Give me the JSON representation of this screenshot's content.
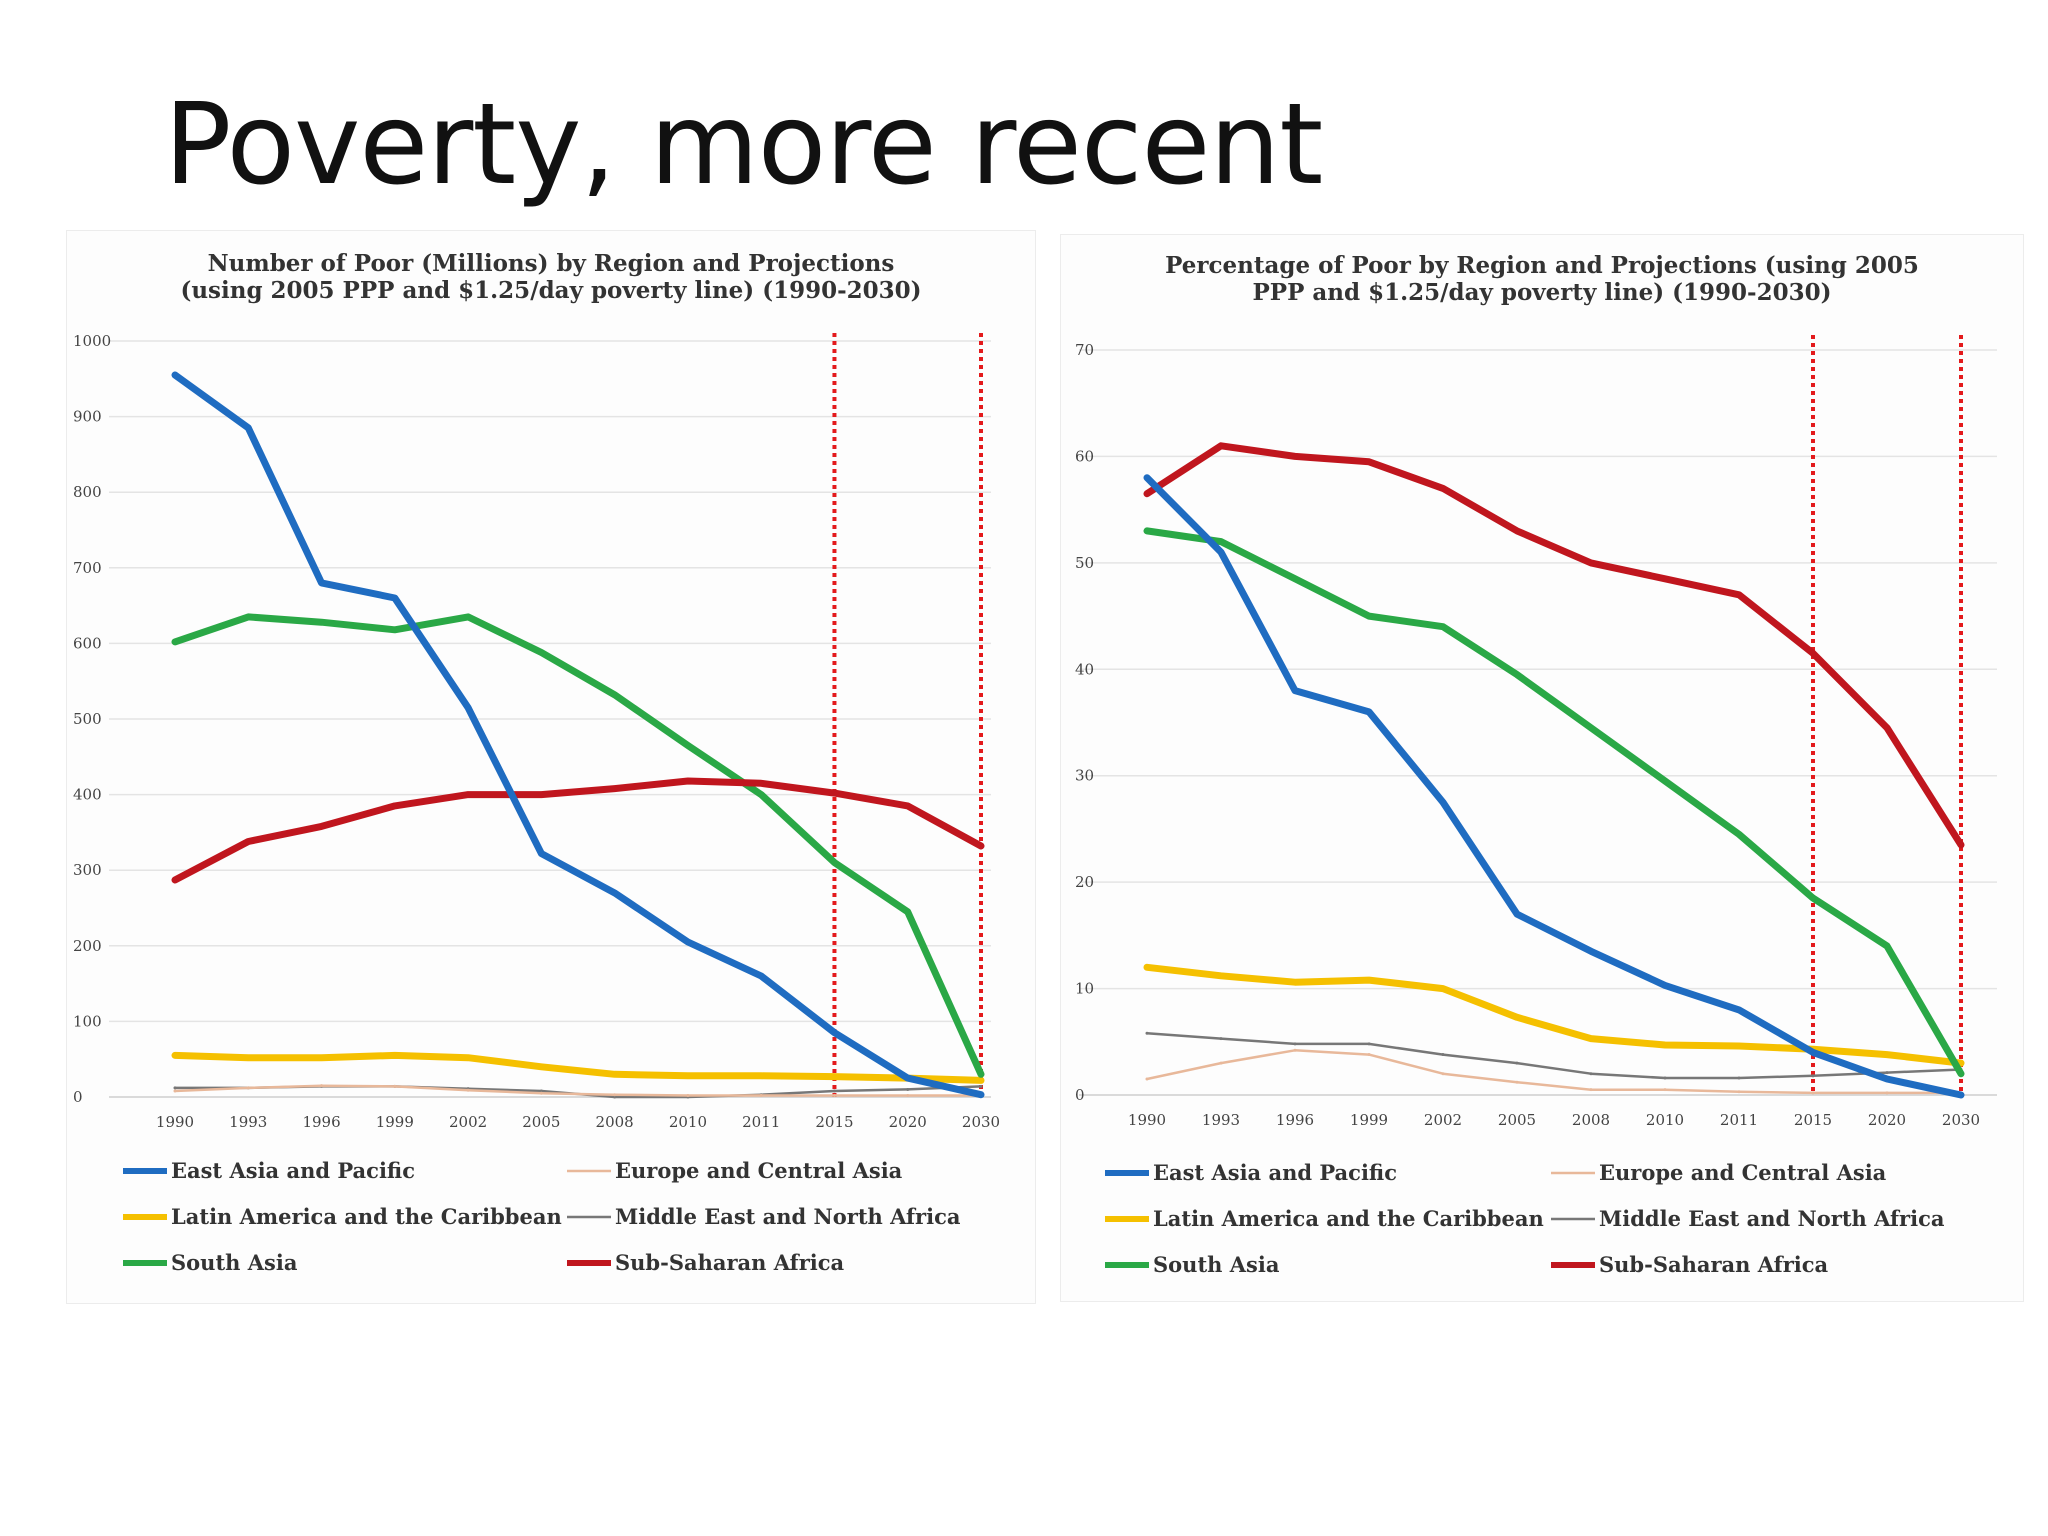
{
  "slide": {
    "title": "Poverty, more recent"
  },
  "colors": {
    "east_asia": "#1f6cc1",
    "europe": "#e8b89a",
    "latin_america": "#f5c000",
    "middle_east": "#777777",
    "south_asia": "#2aa846",
    "sub_saharan": "#c0161e",
    "marker": "#e31a1c"
  },
  "chart_data": [
    {
      "type": "line",
      "title": "Number of Poor (Millions) by Region and Projections (using 2005 PPP and $1.25/day poverty line) (1990-2030)",
      "title_lines": [
        "Number of Poor (Millions) by Region and Projections",
        "(using 2005 PPP and $1.25/day poverty line) (1990-2030)"
      ],
      "categories": [
        "1990",
        "1993",
        "1996",
        "1999",
        "2002",
        "2005",
        "2008",
        "2010",
        "2011",
        "2015",
        "2020",
        "2030"
      ],
      "ylim": [
        0,
        1000
      ],
      "yticks": [
        0,
        100,
        200,
        300,
        400,
        500,
        600,
        700,
        800,
        900,
        1000
      ],
      "grid": true,
      "vertical_markers": [
        "2015",
        "2030"
      ],
      "legend_position": "bottom",
      "series": [
        {
          "name": "East Asia and Pacific",
          "color_key": "east_asia",
          "values": [
            955,
            885,
            680,
            660,
            515,
            322,
            270,
            205,
            160,
            85,
            25,
            3
          ]
        },
        {
          "name": "Europe and Central Asia",
          "color_key": "europe",
          "values": [
            8,
            12,
            15,
            14,
            9,
            5,
            3,
            2,
            2,
            2,
            2,
            2
          ]
        },
        {
          "name": "Latin America and the Caribbean",
          "color_key": "latin_america",
          "values": [
            55,
            52,
            52,
            55,
            52,
            40,
            30,
            28,
            28,
            27,
            25,
            22
          ]
        },
        {
          "name": "Middle East and North Africa",
          "color_key": "middle_east",
          "values": [
            12,
            12,
            14,
            14,
            11,
            8,
            0,
            0,
            3,
            8,
            10,
            14
          ]
        },
        {
          "name": "South Asia",
          "color_key": "south_asia",
          "values": [
            602,
            635,
            628,
            618,
            635,
            588,
            532,
            465,
            400,
            310,
            245,
            30
          ]
        },
        {
          "name": "Sub-Saharan Africa",
          "color_key": "sub_saharan",
          "values": [
            287,
            338,
            358,
            385,
            400,
            400,
            408,
            418,
            415,
            402,
            385,
            332
          ]
        }
      ],
      "legend_order": [
        "East Asia and Pacific",
        "Europe and Central Asia",
        "Latin America and the Caribbean",
        "Middle East and North Africa",
        "South Asia",
        "Sub-Saharan Africa"
      ]
    },
    {
      "type": "line",
      "title": "Percentage of Poor by Region and Projections (using 2005 PPP and $1.25/day poverty line) (1990-2030)",
      "title_lines": [
        "Percentage of Poor by Region and Projections (using 2005",
        "PPP and $1.25/day poverty line) (1990-2030)"
      ],
      "categories": [
        "1990",
        "1993",
        "1996",
        "1999",
        "2002",
        "2005",
        "2008",
        "2010",
        "2011",
        "2015",
        "2020",
        "2030"
      ],
      "ylim": [
        0,
        70
      ],
      "yticks": [
        0,
        10,
        20,
        30,
        40,
        50,
        60,
        70
      ],
      "grid": true,
      "vertical_markers": [
        "2015",
        "2030"
      ],
      "legend_position": "bottom",
      "series": [
        {
          "name": "East Asia and Pacific",
          "color_key": "east_asia",
          "values": [
            58,
            51,
            38,
            36,
            27.5,
            17,
            13.5,
            10.3,
            8,
            4,
            1.5,
            0
          ]
        },
        {
          "name": "Europe and Central Asia",
          "color_key": "europe",
          "values": [
            1.5,
            3,
            4.2,
            3.8,
            2,
            1.2,
            0.5,
            0.5,
            0.3,
            0.2,
            0.2,
            0.2
          ]
        },
        {
          "name": "Latin America and the Caribbean",
          "color_key": "latin_america",
          "values": [
            12,
            11.2,
            10.6,
            10.8,
            10,
            7.3,
            5.3,
            4.7,
            4.6,
            4.3,
            3.8,
            3
          ]
        },
        {
          "name": "Middle East and North Africa",
          "color_key": "middle_east",
          "values": [
            5.8,
            5.3,
            4.8,
            4.8,
            3.8,
            3,
            2,
            1.6,
            1.6,
            1.8,
            2.1,
            2.4
          ]
        },
        {
          "name": "South Asia",
          "color_key": "south_asia",
          "values": [
            53,
            52,
            48.5,
            45,
            44,
            39.5,
            34.5,
            29.5,
            24.5,
            18.5,
            14,
            2
          ]
        },
        {
          "name": "Sub-Saharan Africa",
          "color_key": "sub_saharan",
          "values": [
            56.5,
            61,
            60,
            59.5,
            57,
            53,
            50,
            48.5,
            47,
            41.5,
            34.5,
            23.5
          ]
        }
      ],
      "legend_order": [
        "East Asia and Pacific",
        "Europe and Central Asia",
        "Latin America and the Caribbean",
        "Middle East and North Africa",
        "South Asia",
        "Sub-Saharan Africa"
      ]
    }
  ]
}
